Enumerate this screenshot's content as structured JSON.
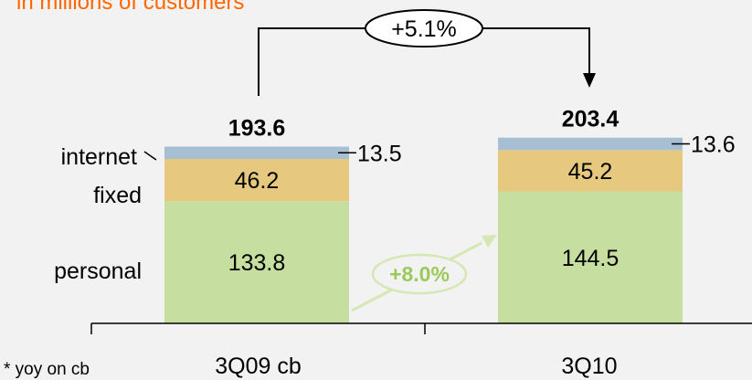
{
  "subtitle": "in millions of customers",
  "footnote": "* yoy on cb",
  "colors": {
    "background": "#f2f2f2",
    "subtitle": "#ff6600",
    "personal": "#c6dea0",
    "fixed": "#e6c97f",
    "internet": "#a7bfd3",
    "growth_arrow": "#d5e8b4",
    "growth_text": "#9cc95b",
    "text": "#000000"
  },
  "annotations": {
    "total_growth": "+5.1%",
    "personal_growth": "+8.0%"
  },
  "chart_data": {
    "type": "bar",
    "stacked": true,
    "categories": [
      "3Q09 cb",
      "3Q10"
    ],
    "series": [
      {
        "name": "personal",
        "values": [
          133.8,
          144.5
        ]
      },
      {
        "name": "fixed",
        "values": [
          46.2,
          45.2
        ]
      },
      {
        "name": "internet",
        "values": [
          13.5,
          13.6
        ]
      }
    ],
    "totals": [
      193.6,
      203.4
    ],
    "subtitle": "in millions of customers",
    "legend": "inline-left",
    "grid": false,
    "ylim": [
      0,
      230
    ]
  }
}
